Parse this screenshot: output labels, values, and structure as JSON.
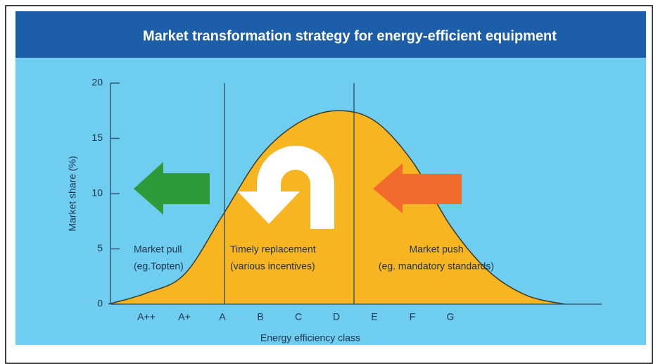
{
  "chart_data": {
    "type": "area",
    "title": "Market transformation strategy for energy-efficient equipment",
    "y_label": "Market share (%)",
    "x_label": "Energy efficiency class",
    "categories": [
      null,
      "A++",
      "A+",
      "A",
      "B",
      "C",
      "D",
      "E",
      "F",
      "G",
      null,
      null,
      null
    ],
    "series": [
      {
        "name": null,
        "color": "#f7b522",
        "values": [
          0,
          1,
          2.7,
          8,
          13.4,
          16.4,
          17.5,
          16.6,
          12.9,
          7.1,
          3,
          0.8,
          0
        ]
      }
    ],
    "ylim": [
      0,
      20
    ],
    "yticks": [
      0,
      5,
      10,
      15,
      20
    ],
    "annotations": [
      {
        "lines": [
          "Market pull",
          "(eg.Topten)"
        ]
      },
      {
        "lines": [
          "Timely replacement",
          "(various incentives)"
        ]
      },
      {
        "lines": [
          "Market push",
          "(eg. mandatory standards)"
        ]
      }
    ]
  }
}
